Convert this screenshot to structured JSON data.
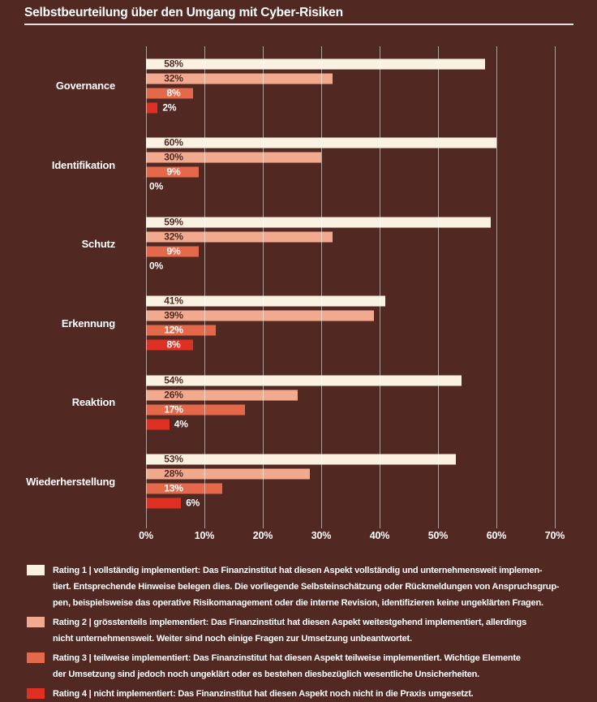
{
  "title": "Selbstbeurteilung über den Umgang mit Cyber-Risiken",
  "colors": {
    "background": "#512922",
    "title_text": "#ffffff",
    "grid": "rgba(255,255,255,0.55)",
    "dark_label_on_bar": "#512922",
    "light_label": "#ffffff"
  },
  "chart_data": {
    "type": "bar",
    "orientation": "horizontal",
    "title": "Selbstbeurteilung über den Umgang mit Cyber-Risiken",
    "categories": [
      "Governance",
      "Identifikation",
      "Schutz",
      "Erkennung",
      "Reaktion",
      "Wiederherstellung"
    ],
    "series": [
      {
        "name": "Rating 1 | vollständig implementiert",
        "color": "#fbf1e3",
        "values": [
          58,
          60,
          59,
          41,
          54,
          53
        ]
      },
      {
        "name": "Rating 2 | grösstenteils implementiert",
        "color": "#f2aa8e",
        "values": [
          32,
          30,
          32,
          39,
          26,
          28
        ]
      },
      {
        "name": "Rating 3 | teilweise implementiert",
        "color": "#e4694a",
        "values": [
          8,
          9,
          9,
          12,
          17,
          13
        ]
      },
      {
        "name": "Rating 4 | nicht implementiert",
        "color": "#de3124",
        "values": [
          2,
          0,
          0,
          8,
          4,
          6
        ]
      }
    ],
    "value_suffix": "%",
    "xlabel": "",
    "ylabel": "",
    "xlim": [
      0,
      70
    ],
    "x_ticks": [
      "0%",
      "10%",
      "20%",
      "30%",
      "40%",
      "50%",
      "60%",
      "70%"
    ],
    "grid": true,
    "gridlines_over_bars": true,
    "legend_position": "bottom"
  },
  "legend": {
    "items": [
      {
        "rating": "Rating 1",
        "color": "#fbf1e3",
        "lines": [
          "Rating 1 | vollständig implementiert: Das Finanzinstitut hat diesen Aspekt vollständig und unternehmensweit implemen-",
          "tiert. Entsprechende Hinweise belegen dies. Die vorliegende Selbsteinschätzung oder Rückmeldungen von Anspruchsgrup-",
          "pen, beispielsweise das operative Risikomanagement oder die interne Revision, identifizieren keine ungeklärten Fragen."
        ]
      },
      {
        "rating": "Rating 2",
        "color": "#f2aa8e",
        "lines": [
          "Rating 2 | grösstenteils implementiert: Das Finanzinstitut hat diesen Aspekt weitestgehend implementiert, allerdings",
          "nicht unternehmensweit. Weiter sind noch einige Fragen zur Umsetzung unbeantwortet."
        ]
      },
      {
        "rating": "Rating 3",
        "color": "#e4694a",
        "lines": [
          "Rating 3 | teilweise implementiert: Das Finanzinstitut hat diesen Aspekt teilweise implementiert. Wichtige Elemente",
          "der Umsetzung sind jedoch noch ungeklärt oder es bestehen diesbezüglich wesentliche Unsicherheiten."
        ]
      },
      {
        "rating": "Rating 4",
        "color": "#de3124",
        "lines": [
          "Rating 4 | nicht implementiert: Das Finanzinstitut hat diesen Aspekt noch nicht in die Praxis umgesetzt."
        ]
      }
    ]
  }
}
